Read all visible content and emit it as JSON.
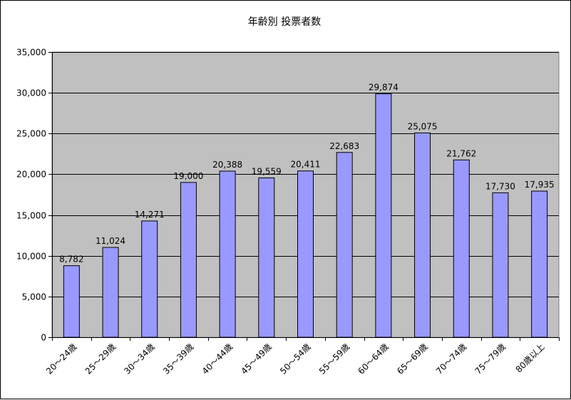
{
  "chart_data": {
    "type": "bar",
    "title": "年齢別 投票者数",
    "xlabel": "",
    "ylabel": "",
    "categories": [
      "20～24歳",
      "25～29歳",
      "30～34歳",
      "35～39歳",
      "40～44歳",
      "45～49歳",
      "50～54歳",
      "55～59歳",
      "60～64歳",
      "65～69歳",
      "70～74歳",
      "75～79歳",
      "80歳以上"
    ],
    "values": [
      8782,
      11024,
      14271,
      19000,
      20388,
      19559,
      20411,
      22683,
      29874,
      25075,
      21762,
      17730,
      17935
    ],
    "value_labels": [
      "8,782",
      "11,024",
      "14,271",
      "19,000",
      "20,388",
      "19,559",
      "20,411",
      "22,683",
      "29,874",
      "25,075",
      "21,762",
      "17,730",
      "17,935"
    ],
    "ylim": [
      0,
      35000
    ],
    "y_ticks": [
      0,
      5000,
      10000,
      15000,
      20000,
      25000,
      30000,
      35000
    ],
    "y_tick_labels": [
      "0",
      "5,000",
      "10,000",
      "15,000",
      "20,000",
      "25,000",
      "30,000",
      "35,000"
    ],
    "grid": true,
    "legend": "none",
    "colors": {
      "bar_fill": "#9999ff",
      "bar_stroke": "#000000",
      "plot_background": "#c0c0c0",
      "gridline": "#000000"
    }
  }
}
